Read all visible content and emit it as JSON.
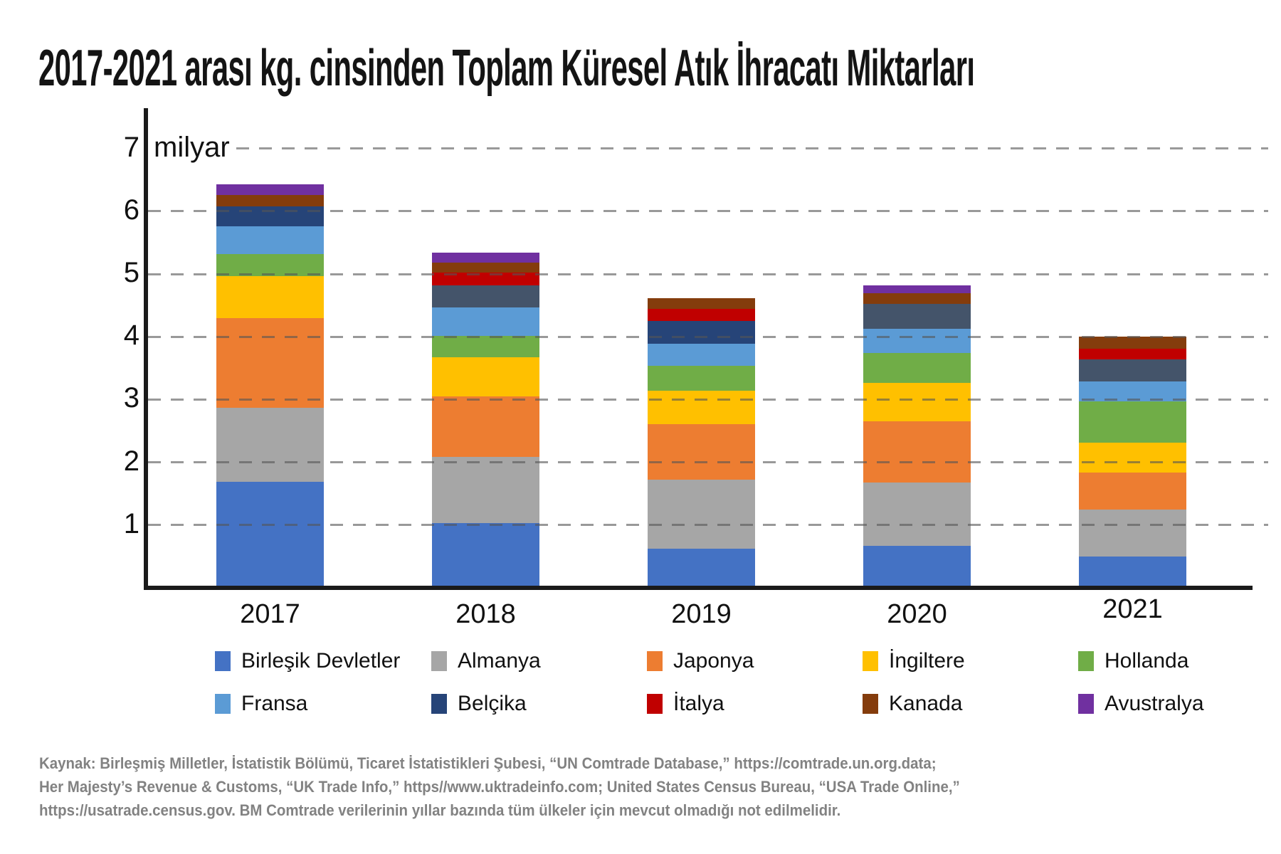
{
  "title": "2017-2021 arası kg. cinsinden Toplam Küresel Atık İhracatı Miktarları",
  "y_axis": {
    "unit_label": "milyar",
    "ticks": [
      1,
      2,
      3,
      4,
      5,
      6,
      7
    ],
    "max": 7
  },
  "chart_data": {
    "type": "stacked-bar",
    "title": "2017-2021 arası kg. cinsinden Toplam Küresel Atık İhracatı Miktarları",
    "unit": "milyar kg",
    "ylim": [
      0,
      7
    ],
    "grid": "horizontal-dashed",
    "legend_position": "bottom",
    "categories": [
      "2017",
      "2018",
      "2019",
      "2020",
      "2021"
    ],
    "series": [
      {
        "name": "Birleşik Devletler",
        "color": "#4472C4",
        "values": [
          1.65,
          1.0,
          0.59,
          0.64,
          0.47
        ]
      },
      {
        "name": "Almanya",
        "color": "#A6A6A6",
        "values": [
          1.18,
          1.05,
          1.1,
          1.0,
          0.74
        ]
      },
      {
        "name": "Japonya",
        "color": "#ED7D31",
        "values": [
          1.43,
          0.97,
          0.88,
          0.98,
          0.59
        ]
      },
      {
        "name": "İngiltere",
        "color": "#FFC000",
        "values": [
          0.67,
          0.62,
          0.54,
          0.61,
          0.48
        ]
      },
      {
        "name": "Hollanda",
        "color": "#70AD47",
        "values": [
          0.35,
          0.34,
          0.39,
          0.48,
          0.66
        ]
      },
      {
        "name": "Fransa",
        "color": "#5B9BD5",
        "values": [
          0.44,
          0.45,
          0.36,
          0.38,
          0.31
        ]
      },
      {
        "name": "Belçika",
        "color": "#264478",
        "bar_colors": [
          "#264478",
          "#44546A",
          "#264478",
          "#44546A",
          "#44546A"
        ],
        "values": [
          0.32,
          0.35,
          0.36,
          0.4,
          0.35
        ]
      },
      {
        "name": "İtalya",
        "color": "#C00000",
        "values": [
          0,
          0.21,
          0.19,
          0,
          0.18
        ]
      },
      {
        "name": "Kanada",
        "color": "#843C0C",
        "values": [
          0.19,
          0.16,
          0.17,
          0.17,
          0.19
        ]
      },
      {
        "name": "Avustralya",
        "color": "#7030A0",
        "values": [
          0.17,
          0.16,
          0,
          0.13,
          0
        ]
      }
    ]
  },
  "footer_lines": [
    "Kaynak: Birleşmiş Milletler, İstatistik Bölümü, Ticaret İstatistikleri Şubesi, “UN Comtrade Database,” https://comtrade.un.org.data;",
    "Her Majesty’s Revenue & Customs, “UK Trade Info,” https//www.uktradeinfo.com; United States Census Bureau, “USA Trade Online,”",
    "https://usatrade.census.gov. BM Comtrade verilerinin yıllar bazında tüm ülkeler için mevcut olmadığı not edilmelidir."
  ]
}
